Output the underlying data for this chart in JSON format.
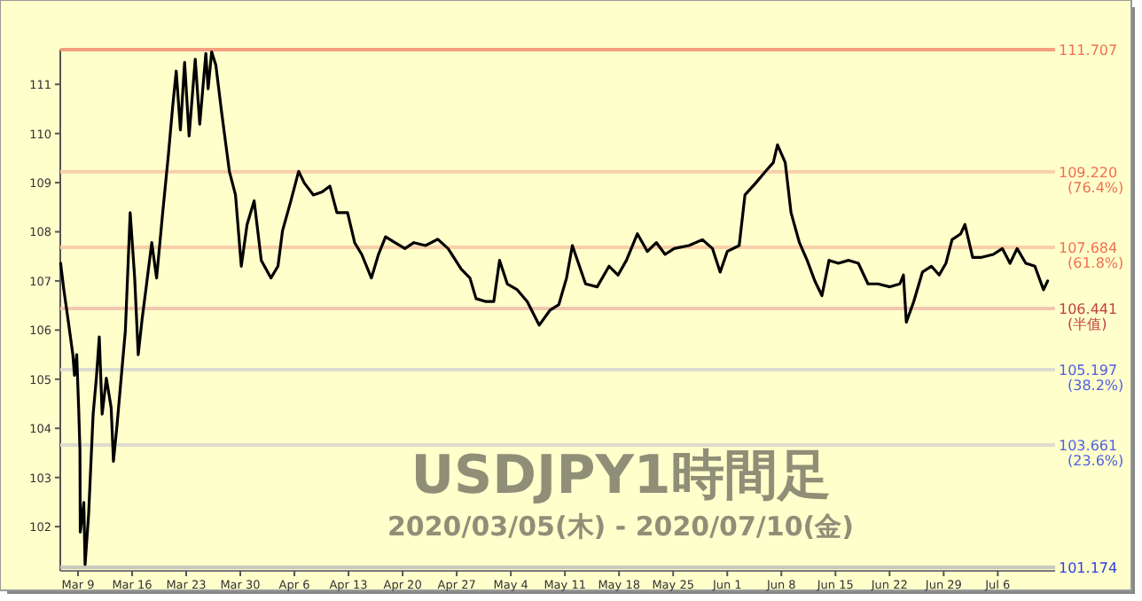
{
  "chart_data": {
    "type": "line",
    "title": "USDJPY1時間足",
    "subtitle": "2020/03/05(木) - 2020/07/10(金)",
    "x": [
      "2020-03-06T18:00",
      "2020-03-07T04:00",
      "2020-03-07T17:00",
      "2020-03-08T08:00",
      "2020-03-08T13:00",
      "2020-03-08T20:00",
      "2020-03-09T02:00",
      "2020-03-09T06:00",
      "2020-03-09T07:00",
      "2020-03-09T18:00",
      "2020-03-09T22:00",
      "2020-03-10T09:00",
      "2020-03-10T23:00",
      "2020-03-11T09:00",
      "2020-03-11T18:00",
      "2020-03-12T03:00",
      "2020-03-12T16:00",
      "2020-03-13T07:00",
      "2020-03-13T14:00",
      "2020-03-14T01:00",
      "2020-03-14T14:00",
      "2020-03-15T03:00",
      "2020-03-15T18:00",
      "2020-03-16T08:00",
      "2020-03-16T19:00",
      "2020-03-17T07:00",
      "2020-03-17T21:00",
      "2020-03-18T13:00",
      "2020-03-19T04:00",
      "2020-03-19T23:00",
      "2020-03-20T17:00",
      "2020-03-21T06:00",
      "2020-03-21T17:00",
      "2020-03-22T06:00",
      "2020-03-22T19:00",
      "2020-03-23T09:00",
      "2020-03-24T04:00",
      "2020-03-24T18:00",
      "2020-03-25T13:00",
      "2020-03-25T20:00",
      "2020-03-26T07:00",
      "2020-03-26T20:00",
      "2020-03-27T14:00",
      "2020-03-28T14:00",
      "2020-03-29T09:00",
      "2020-03-30T03:00",
      "2020-03-30T21:00",
      "2020-03-31T19:00",
      "2020-04-01T17:00",
      "2020-04-02T23:00",
      "2020-04-03T21:00",
      "2020-04-04T11:00",
      "2020-04-05T13:00",
      "2020-04-06T13:00",
      "2020-04-07T07:00",
      "2020-04-08T11:00",
      "2020-04-09T14:00",
      "2020-04-10T14:00",
      "2020-04-11T12:00",
      "2020-04-12T21:00",
      "2020-04-13T19:00",
      "2020-04-14T17:00",
      "2020-04-15T23:00",
      "2020-04-16T21:00",
      "2020-04-17T19:00",
      "2020-04-19T00:00",
      "2020-04-20T07:00",
      "2020-04-21T11:00",
      "2020-04-22T23:00",
      "2020-04-24T13:00",
      "2020-04-25T21:00",
      "2020-04-27T14:00",
      "2020-04-28T17:00",
      "2020-04-29T12:00",
      "2020-04-30T19:00",
      "2020-05-01T19:00",
      "2020-05-02T13:00",
      "2020-05-03T13:00",
      "2020-05-04T20:00",
      "2020-05-06T03:00",
      "2020-05-07T16:00",
      "2020-05-09T01:00",
      "2020-05-10T05:00",
      "2020-05-11T05:00",
      "2020-05-11T23:00",
      "2020-05-13T16:00",
      "2020-05-15T04:00",
      "2020-05-16T17:00",
      "2020-05-17T21:00",
      "2020-05-18T23:00",
      "2020-05-20T09:00",
      "2020-05-21T16:00",
      "2020-05-22T20:00",
      "2020-05-23T23:00",
      "2020-05-25T03:00",
      "2020-05-27T01:00",
      "2020-05-28T19:00",
      "2020-05-30T02:00",
      "2020-05-31T02:00",
      "2020-06-01T00:00",
      "2020-06-02T13:00",
      "2020-06-03T07:00",
      "2020-06-04T16:00",
      "2020-06-05T23:00",
      "2020-06-06T23:00",
      "2020-06-07T12:00",
      "2020-06-08T12:00",
      "2020-06-09T06:00",
      "2020-06-10T08:00",
      "2020-06-11T08:00",
      "2020-06-12T08:00",
      "2020-06-13T06:00",
      "2020-06-14T04:00",
      "2020-06-15T09:00",
      "2020-06-16T17:00",
      "2020-06-17T23:00",
      "2020-06-19T05:00",
      "2020-06-20T12:00",
      "2020-06-22T01:00",
      "2020-06-23T08:00",
      "2020-06-23T19:00",
      "2020-06-24T04:00",
      "2020-06-25T03:00",
      "2020-06-26T06:00",
      "2020-06-27T10:00",
      "2020-06-28T10:00",
      "2020-06-29T07:00",
      "2020-06-30T02:00",
      "2020-07-01T05:00",
      "2020-07-01T18:00",
      "2020-07-02T18:00",
      "2020-07-03T22:00",
      "2020-07-05T10:00",
      "2020-07-06T14:00",
      "2020-07-07T14:00",
      "2020-07-08T12:00",
      "2020-07-09T15:00",
      "2020-07-10T19:00",
      "2020-07-11T22:00",
      "2020-07-12T11:00"
    ],
    "series": [
      {
        "color": "#000000",
        "values": [
          107.36,
          106.82,
          106.22,
          105.5,
          105.08,
          105.5,
          104.42,
          103.57,
          101.89,
          102.49,
          101.23,
          102.25,
          104.29,
          105.02,
          105.86,
          104.29,
          105.02,
          104.42,
          103.33,
          104.05,
          105.02,
          105.98,
          108.39,
          107.06,
          105.5,
          106.22,
          106.94,
          107.78,
          107.06,
          108.39,
          109.59,
          110.55,
          111.27,
          110.07,
          111.45,
          109.95,
          111.51,
          110.19,
          111.63,
          110.91,
          111.66,
          111.39,
          110.43,
          109.23,
          108.75,
          107.3,
          108.15,
          108.63,
          107.42,
          107.06,
          107.3,
          108.02,
          108.63,
          109.23,
          108.99,
          108.75,
          108.81,
          108.93,
          108.39,
          108.39,
          107.78,
          107.54,
          107.06,
          107.54,
          107.9,
          107.78,
          107.66,
          107.78,
          107.72,
          107.85,
          107.66,
          107.24,
          107.06,
          106.64,
          106.58,
          106.58,
          107.42,
          106.94,
          106.82,
          106.58,
          106.1,
          106.4,
          106.52,
          107.06,
          107.72,
          106.94,
          106.88,
          107.3,
          107.12,
          107.42,
          107.96,
          107.6,
          107.78,
          107.54,
          107.66,
          107.72,
          107.84,
          107.66,
          107.18,
          107.6,
          107.72,
          108.75,
          108.99,
          109.23,
          109.41,
          109.77,
          109.41,
          108.39,
          107.78,
          107.42,
          107.0,
          106.7,
          107.42,
          107.36,
          107.42,
          107.36,
          106.94,
          106.94,
          106.88,
          106.94,
          107.12,
          106.16,
          106.58,
          107.18,
          107.3,
          107.12,
          107.36,
          107.84,
          107.96,
          108.15,
          107.48,
          107.48,
          107.54,
          107.66,
          107.36,
          107.66,
          107.36,
          107.3,
          106.82,
          107.0
        ]
      }
    ],
    "xlim": [
      "2020-03-06T17:00",
      "2020-07-13T10:00"
    ],
    "xticks": [
      {
        "value": "2020-03-09",
        "label": "Mar 9"
      },
      {
        "value": "2020-03-16",
        "label": "Mar 16"
      },
      {
        "value": "2020-03-23",
        "label": "Mar 23"
      },
      {
        "value": "2020-03-30",
        "label": "Mar 30"
      },
      {
        "value": "2020-04-06",
        "label": "Apr 6"
      },
      {
        "value": "2020-04-13",
        "label": "Apr 13"
      },
      {
        "value": "2020-04-20",
        "label": "Apr 20"
      },
      {
        "value": "2020-04-27",
        "label": "Apr 27"
      },
      {
        "value": "2020-05-04",
        "label": "May 4"
      },
      {
        "value": "2020-05-11",
        "label": "May 11"
      },
      {
        "value": "2020-05-18",
        "label": "May 18"
      },
      {
        "value": "2020-05-25",
        "label": "May 25"
      },
      {
        "value": "2020-06-01",
        "label": "Jun 1"
      },
      {
        "value": "2020-06-08",
        "label": "Jun 8"
      },
      {
        "value": "2020-06-15",
        "label": "Jun 15"
      },
      {
        "value": "2020-06-22",
        "label": "Jun 22"
      },
      {
        "value": "2020-06-29",
        "label": "Jun 29"
      },
      {
        "value": "2020-07-06",
        "label": "Jul 6"
      }
    ],
    "ylim": [
      101.1,
      111.707
    ],
    "yticks": [
      102,
      103,
      104,
      105,
      106,
      107,
      108,
      109,
      110,
      111
    ],
    "ref_lines": [
      {
        "axis": "y",
        "value": 111.707,
        "label": "111.707",
        "color": "#f4a080"
      },
      {
        "axis": "y",
        "value": 109.22,
        "label": "109.220 (76.4%)",
        "color": "#f8cfa8"
      },
      {
        "axis": "y",
        "value": 107.684,
        "label": "107.684 (61.8%)",
        "color": "#f8cfa8"
      },
      {
        "axis": "y",
        "value": 106.441,
        "label": "106.441 (半值)",
        "color": "#f0c8b0"
      },
      {
        "axis": "y",
        "value": 105.197,
        "label": "105.197 (38.2%)",
        "color": "#dcdcd0"
      },
      {
        "axis": "y",
        "value": 103.661,
        "label": "103.661 (23.6%)",
        "color": "#dcdcd0"
      },
      {
        "axis": "y",
        "value": 101.174,
        "label": "101.174",
        "color": "#c8c8c0"
      }
    ]
  }
}
